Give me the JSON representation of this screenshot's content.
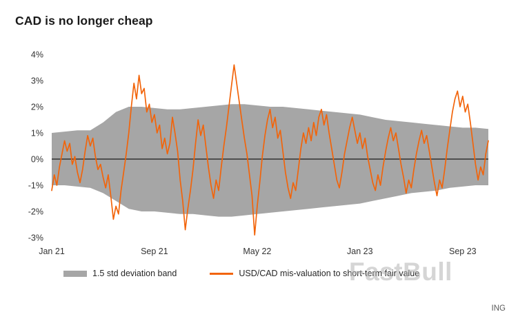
{
  "page": {
    "title": "CAD is no longer cheap",
    "watermark": "FastBull",
    "source": "ING"
  },
  "chart_data": {
    "type": "line",
    "title": "CAD is no longer cheap",
    "xlabel": "",
    "ylabel": "",
    "ylim": [
      -3,
      4
    ],
    "yticks": [
      4,
      3,
      2,
      1,
      0,
      -1,
      -2,
      -3
    ],
    "ytick_suffix": "%",
    "x_range": [
      0,
      34
    ],
    "x_unit": "months since Jan 2021",
    "xticks": [
      {
        "pos": 0,
        "label": "Jan 21"
      },
      {
        "pos": 8,
        "label": "Sep 21"
      },
      {
        "pos": 16,
        "label": "May 22"
      },
      {
        "pos": 24,
        "label": "Jan 23"
      },
      {
        "pos": 32,
        "label": "Sep 23"
      }
    ],
    "grid": false,
    "zero_line_color": "#1a1a1a",
    "legend_position": "bottom",
    "band": {
      "name": "1.5 std deviation band",
      "color": "#a6a6a6",
      "x_start": 0,
      "x_step": 1,
      "upper": [
        1.0,
        1.05,
        1.1,
        1.1,
        1.4,
        1.8,
        2.0,
        2.0,
        1.95,
        1.9,
        1.9,
        1.95,
        2.0,
        2.05,
        2.1,
        2.1,
        2.05,
        2.0,
        2.0,
        1.95,
        1.9,
        1.85,
        1.8,
        1.75,
        1.7,
        1.6,
        1.5,
        1.45,
        1.4,
        1.35,
        1.3,
        1.25,
        1.2,
        1.2,
        1.15
      ],
      "lower": [
        -1.0,
        -1.0,
        -1.05,
        -1.1,
        -1.3,
        -1.6,
        -1.9,
        -2.0,
        -2.0,
        -2.05,
        -2.1,
        -2.1,
        -2.15,
        -2.2,
        -2.2,
        -2.15,
        -2.1,
        -2.05,
        -2.0,
        -1.95,
        -1.9,
        -1.85,
        -1.8,
        -1.75,
        -1.7,
        -1.6,
        -1.5,
        -1.4,
        -1.3,
        -1.25,
        -1.2,
        -1.1,
        -1.05,
        -1.0,
        -1.0
      ]
    },
    "series": [
      {
        "name": "USD/CAD mis-valuation to short-term fair value",
        "color": "#f2640a",
        "x_start": 0,
        "x_step": 0.2,
        "y": [
          -1.2,
          -0.6,
          -1.0,
          -0.3,
          0.2,
          0.7,
          0.3,
          0.6,
          -0.2,
          0.1,
          -0.5,
          -0.9,
          -0.4,
          0.3,
          0.9,
          0.5,
          0.8,
          0.1,
          -0.4,
          -0.2,
          -0.7,
          -1.1,
          -0.6,
          -1.4,
          -2.3,
          -1.8,
          -2.1,
          -1.2,
          -0.5,
          0.2,
          1.0,
          2.0,
          2.9,
          2.3,
          3.2,
          2.5,
          2.7,
          1.8,
          2.1,
          1.4,
          1.7,
          1.0,
          1.3,
          0.4,
          0.8,
          0.2,
          0.6,
          1.6,
          1.0,
          0.3,
          -0.8,
          -1.6,
          -2.7,
          -1.9,
          -1.2,
          -0.4,
          0.6,
          1.5,
          0.9,
          1.3,
          0.5,
          -0.3,
          -1.0,
          -1.5,
          -0.8,
          -1.2,
          -0.3,
          0.5,
          1.2,
          2.0,
          2.8,
          3.6,
          2.9,
          2.2,
          1.5,
          0.8,
          0.2,
          -0.6,
          -1.4,
          -2.9,
          -1.8,
          -0.9,
          0.1,
          0.9,
          1.5,
          1.9,
          1.2,
          1.6,
          0.8,
          1.1,
          0.3,
          -0.5,
          -1.1,
          -1.5,
          -0.9,
          -1.2,
          -0.4,
          0.4,
          1.0,
          0.6,
          1.2,
          0.7,
          1.4,
          0.9,
          1.6,
          1.9,
          1.3,
          1.7,
          1.0,
          0.4,
          -0.2,
          -0.8,
          -1.1,
          -0.5,
          0.2,
          0.7,
          1.2,
          1.6,
          1.1,
          0.6,
          1.0,
          0.4,
          0.8,
          0.1,
          -0.4,
          -0.9,
          -1.2,
          -0.6,
          -1.0,
          -0.3,
          0.3,
          0.8,
          1.2,
          0.7,
          1.0,
          0.4,
          -0.2,
          -0.7,
          -1.3,
          -0.8,
          -1.1,
          -0.4,
          0.2,
          0.7,
          1.1,
          0.6,
          0.9,
          0.3,
          -0.3,
          -0.9,
          -1.4,
          -0.8,
          -1.1,
          -0.4,
          0.4,
          1.1,
          1.8,
          2.3,
          2.6,
          2.0,
          2.4,
          1.8,
          2.1,
          1.4,
          0.6,
          -0.2,
          -0.8,
          -0.3,
          -0.6,
          0.2,
          0.7
        ]
      }
    ]
  }
}
